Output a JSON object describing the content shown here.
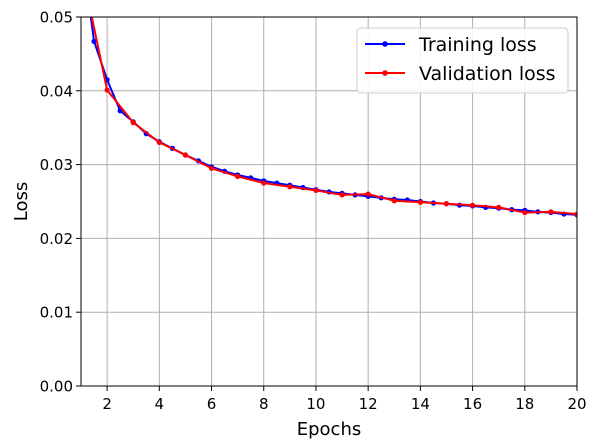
{
  "chart_data": {
    "type": "line",
    "title": "",
    "xlabel": "Epochs",
    "ylabel": "Loss",
    "xlim": [
      1,
      20
    ],
    "ylim": [
      0,
      0.05
    ],
    "xticks": [
      2,
      4,
      6,
      8,
      10,
      12,
      14,
      16,
      18,
      20
    ],
    "yticks": [
      "0.00",
      "0.01",
      "0.02",
      "0.03",
      "0.04",
      "0.05"
    ],
    "grid": true,
    "legend_position": "top-right",
    "series": [
      {
        "name": "Training loss",
        "color": "#0000ff",
        "marker": "circle",
        "x": [
          1.0,
          1.5,
          2.0,
          2.5,
          3.0,
          3.5,
          4.0,
          4.5,
          5.0,
          5.5,
          6.0,
          6.5,
          7.0,
          7.5,
          8.0,
          8.5,
          9.0,
          9.5,
          10.0,
          10.5,
          11.0,
          11.5,
          12.0,
          12.5,
          13.0,
          13.5,
          14.0,
          14.5,
          15.0,
          15.5,
          16.0,
          16.5,
          17.0,
          17.5,
          18.0,
          18.5,
          19.0,
          19.5,
          20.0
        ],
        "y": [
          0.06,
          0.0467,
          0.0415,
          0.0373,
          0.0358,
          0.0342,
          0.0331,
          0.0322,
          0.0313,
          0.0305,
          0.0297,
          0.0291,
          0.0286,
          0.0282,
          0.0278,
          0.0275,
          0.0272,
          0.0269,
          0.0266,
          0.0263,
          0.0261,
          0.0259,
          0.0257,
          0.0255,
          0.0253,
          0.0252,
          0.025,
          0.0248,
          0.0247,
          0.0245,
          0.0244,
          0.0242,
          0.0241,
          0.0239,
          0.0238,
          0.0236,
          0.0235,
          0.0233,
          0.0232
        ]
      },
      {
        "name": "Validation loss",
        "color": "#ff0000",
        "marker": "circle",
        "x": [
          1.0,
          2.0,
          3.0,
          4.0,
          5.0,
          6.0,
          7.0,
          8.0,
          9.0,
          10.0,
          11.0,
          12.0,
          13.0,
          14.0,
          15.0,
          16.0,
          17.0,
          18.0,
          19.0,
          20.0
        ],
        "y": [
          0.057,
          0.0401,
          0.0357,
          0.033,
          0.0313,
          0.0295,
          0.0284,
          0.0275,
          0.027,
          0.0265,
          0.0259,
          0.026,
          0.0251,
          0.0249,
          0.0247,
          0.0245,
          0.0242,
          0.0235,
          0.0236,
          0.0233
        ]
      }
    ]
  }
}
